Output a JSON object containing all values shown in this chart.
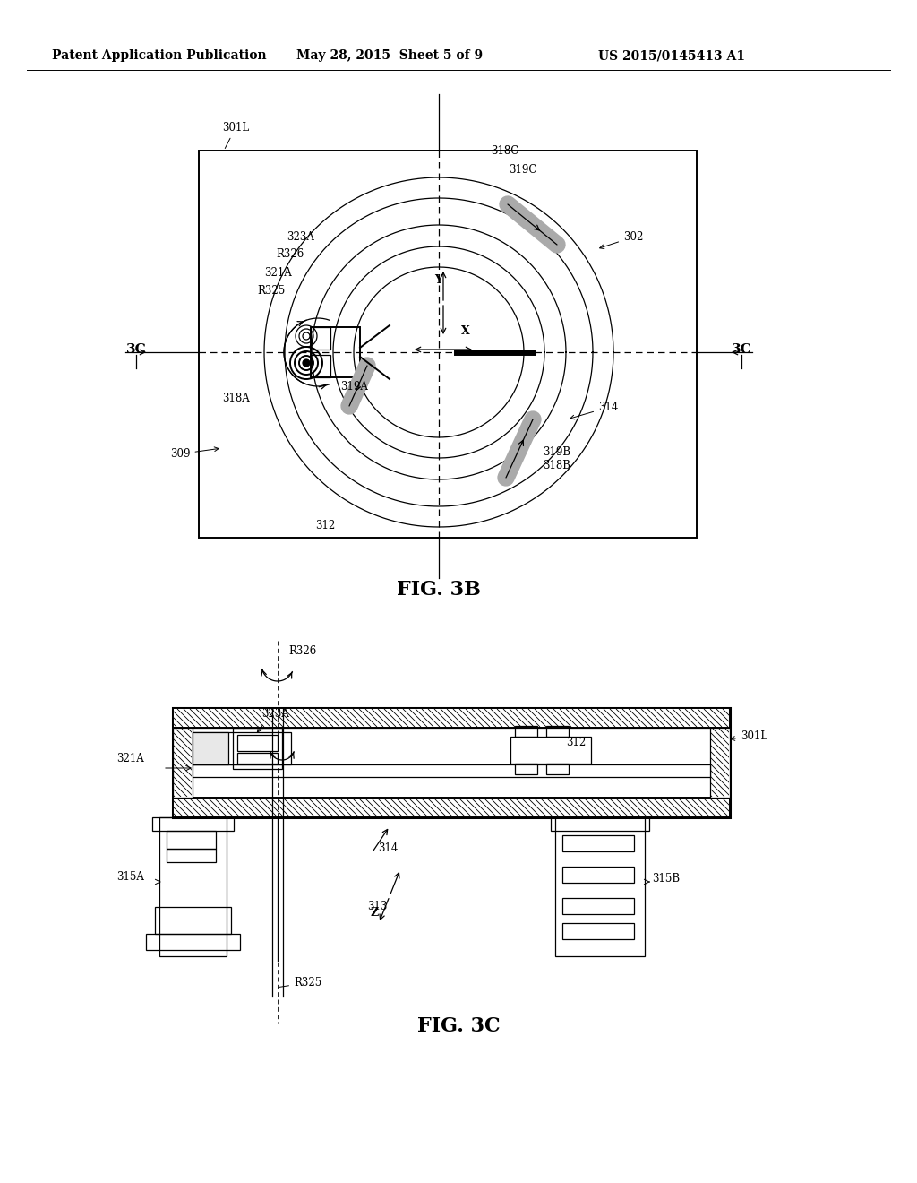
{
  "bg_color": "#ffffff",
  "line_color": "#000000",
  "header_left": "Patent Application Publication",
  "header_mid": "May 28, 2015  Sheet 5 of 9",
  "header_right": "US 2015/0145413 A1",
  "fig3b_label": "FIG. 3B",
  "fig3c_label": "FIG. 3C",
  "header_font_size": 10,
  "fig_label_font_size": 16,
  "label_font_size": 8.5
}
